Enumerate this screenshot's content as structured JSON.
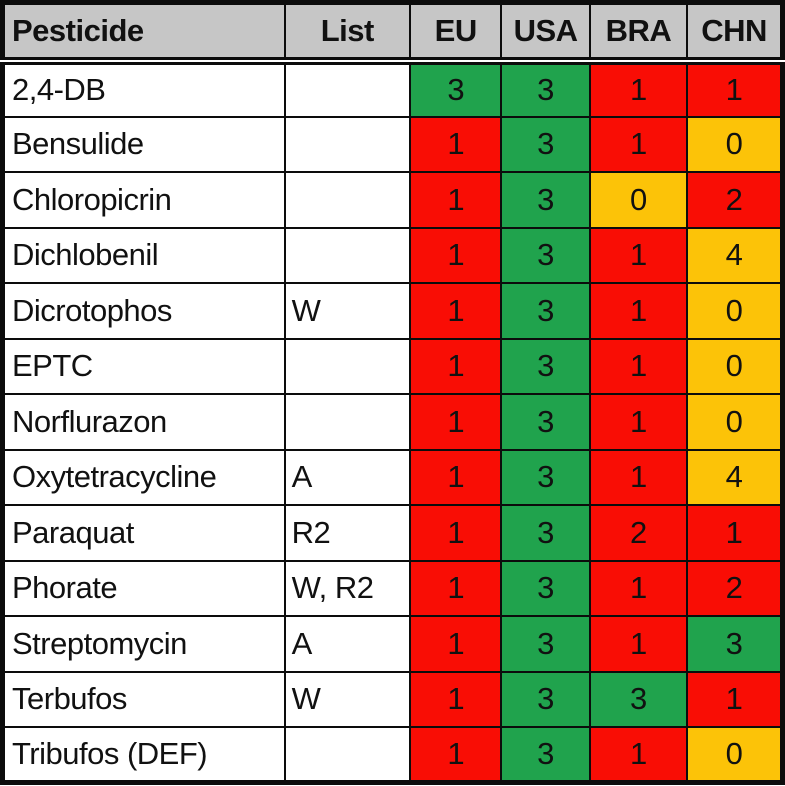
{
  "chart_data": {
    "type": "table",
    "title": "",
    "columns": [
      "Pesticide",
      "List",
      "EU",
      "USA",
      "BRA",
      "CHN"
    ],
    "color_hex": {
      "green": "#20a34d",
      "red": "#f90d05",
      "orange": "#fcc308",
      "header_bg": "#c6c6c6",
      "border": "#0c0c0c"
    },
    "rows": [
      {
        "pesticide": "2,4-DB",
        "list": "",
        "cells": [
          {
            "value": "3",
            "color": "green"
          },
          {
            "value": "3",
            "color": "green"
          },
          {
            "value": "1",
            "color": "red"
          },
          {
            "value": "1",
            "color": "red"
          }
        ]
      },
      {
        "pesticide": "Bensulide",
        "list": "",
        "cells": [
          {
            "value": "1",
            "color": "red"
          },
          {
            "value": "3",
            "color": "green"
          },
          {
            "value": "1",
            "color": "red"
          },
          {
            "value": "0",
            "color": "orange"
          }
        ]
      },
      {
        "pesticide": "Chloropicrin",
        "list": "",
        "cells": [
          {
            "value": "1",
            "color": "red"
          },
          {
            "value": "3",
            "color": "green"
          },
          {
            "value": "0",
            "color": "orange"
          },
          {
            "value": "2",
            "color": "red"
          }
        ]
      },
      {
        "pesticide": "Dichlobenil",
        "list": "",
        "cells": [
          {
            "value": "1",
            "color": "red"
          },
          {
            "value": "3",
            "color": "green"
          },
          {
            "value": "1",
            "color": "red"
          },
          {
            "value": "4",
            "color": "orange"
          }
        ]
      },
      {
        "pesticide": "Dicrotophos",
        "list": "W",
        "cells": [
          {
            "value": "1",
            "color": "red"
          },
          {
            "value": "3",
            "color": "green"
          },
          {
            "value": "1",
            "color": "red"
          },
          {
            "value": "0",
            "color": "orange"
          }
        ]
      },
      {
        "pesticide": "EPTC",
        "list": "",
        "cells": [
          {
            "value": "1",
            "color": "red"
          },
          {
            "value": "3",
            "color": "green"
          },
          {
            "value": "1",
            "color": "red"
          },
          {
            "value": "0",
            "color": "orange"
          }
        ]
      },
      {
        "pesticide": "Norflurazon",
        "list": "",
        "cells": [
          {
            "value": "1",
            "color": "red"
          },
          {
            "value": "3",
            "color": "green"
          },
          {
            "value": "1",
            "color": "red"
          },
          {
            "value": "0",
            "color": "orange"
          }
        ]
      },
      {
        "pesticide": "Oxytetracycline",
        "list": "A",
        "cells": [
          {
            "value": "1",
            "color": "red"
          },
          {
            "value": "3",
            "color": "green"
          },
          {
            "value": "1",
            "color": "red"
          },
          {
            "value": "4",
            "color": "orange"
          }
        ]
      },
      {
        "pesticide": "Paraquat",
        "list": "R2",
        "cells": [
          {
            "value": "1",
            "color": "red"
          },
          {
            "value": "3",
            "color": "green"
          },
          {
            "value": "2",
            "color": "red"
          },
          {
            "value": "1",
            "color": "red"
          }
        ]
      },
      {
        "pesticide": "Phorate",
        "list": "W, R2",
        "cells": [
          {
            "value": "1",
            "color": "red"
          },
          {
            "value": "3",
            "color": "green"
          },
          {
            "value": "1",
            "color": "red"
          },
          {
            "value": "2",
            "color": "red"
          }
        ]
      },
      {
        "pesticide": "Streptomycin",
        "list": "A",
        "cells": [
          {
            "value": "1",
            "color": "red"
          },
          {
            "value": "3",
            "color": "green"
          },
          {
            "value": "1",
            "color": "red"
          },
          {
            "value": "3",
            "color": "green"
          }
        ]
      },
      {
        "pesticide": "Terbufos",
        "list": "W",
        "cells": [
          {
            "value": "1",
            "color": "red"
          },
          {
            "value": "3",
            "color": "green"
          },
          {
            "value": "3",
            "color": "green"
          },
          {
            "value": "1",
            "color": "red"
          }
        ]
      },
      {
        "pesticide": "Tribufos (DEF)",
        "list": "",
        "cells": [
          {
            "value": "1",
            "color": "red"
          },
          {
            "value": "3",
            "color": "green"
          },
          {
            "value": "1",
            "color": "red"
          },
          {
            "value": "0",
            "color": "orange"
          }
        ]
      }
    ]
  }
}
